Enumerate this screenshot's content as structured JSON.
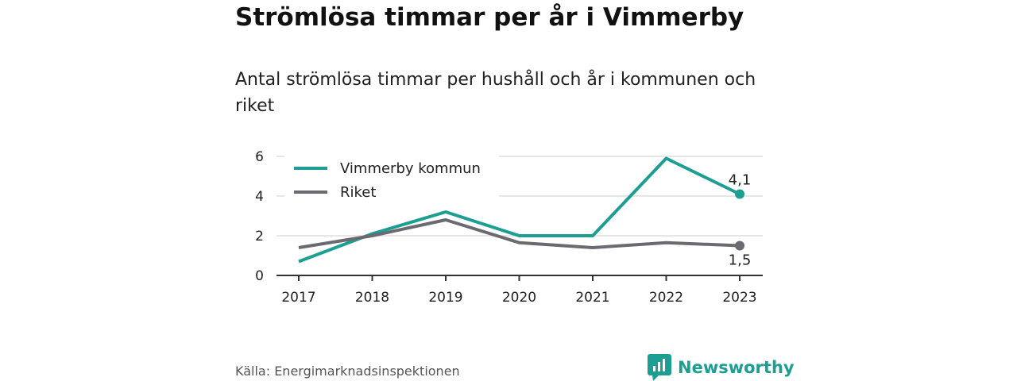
{
  "title": "Strömlösa timmar per år i Vimmerby",
  "subtitle": "Antal strömlösa timmar per hushåll och år i kommunen och riket",
  "source": "Källa: Energimarknadsinspektionen",
  "brand": {
    "name": "Newsworthy",
    "color": "#1c9e92",
    "icon": "bar-chart-speech-icon"
  },
  "chart_data": {
    "type": "line",
    "x": [
      "2017",
      "2018",
      "2019",
      "2020",
      "2021",
      "2022",
      "2023"
    ],
    "ylim": [
      0,
      6
    ],
    "yticks": [
      0,
      2,
      4,
      6
    ],
    "grid": true,
    "legend_position": "top-left",
    "series": [
      {
        "name": "Vimmerby kommun",
        "color": "#1c9e92",
        "values": [
          0.7,
          2.1,
          3.2,
          2.0,
          2.0,
          5.9,
          4.1
        ],
        "end_label": "4,1"
      },
      {
        "name": "Riket",
        "color": "#6b6a70",
        "values": [
          1.4,
          2.0,
          2.8,
          1.65,
          1.4,
          1.65,
          1.5
        ],
        "end_label": "1,5"
      }
    ]
  }
}
